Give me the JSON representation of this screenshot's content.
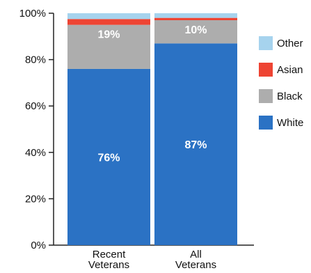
{
  "chart_data": {
    "type": "bar",
    "stacked": true,
    "categories": [
      [
        "Recent",
        "Veterans"
      ],
      [
        "All",
        "Veterans"
      ]
    ],
    "series": [
      {
        "name": "White",
        "values": [
          76,
          87
        ],
        "color": "#2b72c4"
      },
      {
        "name": "Black",
        "values": [
          19,
          10
        ],
        "color": "#adadad"
      },
      {
        "name": "Asian",
        "values": [
          2.5,
          1
        ],
        "color": "#ee4433"
      },
      {
        "name": "Other",
        "values": [
          2.5,
          2
        ],
        "color": "#a6d3ee"
      }
    ],
    "data_labels": [
      {
        "series": "White",
        "labels": [
          "76%",
          "87%"
        ]
      },
      {
        "series": "Black",
        "labels": [
          "19%",
          "10%"
        ]
      }
    ],
    "y_ticks": [
      "0%",
      "20%",
      "40%",
      "60%",
      "80%",
      "100%"
    ],
    "ylim": [
      0,
      100
    ],
    "legend_position": "right",
    "grid": false
  }
}
